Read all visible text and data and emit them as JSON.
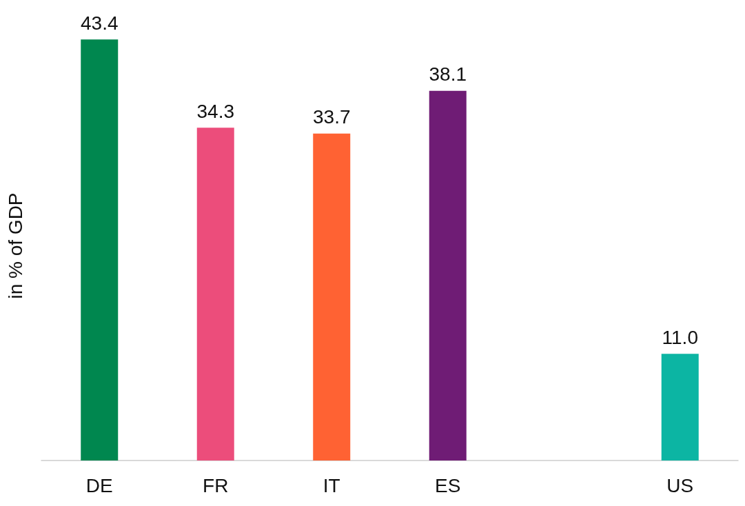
{
  "chart_data": {
    "type": "bar",
    "ylabel": "in % of GDP",
    "categories": [
      "DE",
      "FR",
      "IT",
      "ES",
      null,
      "US"
    ],
    "values": [
      43.4,
      34.3,
      33.7,
      38.1,
      null,
      11.0
    ],
    "colors": [
      "#00874f",
      "#ec4d7b",
      "#ff6233",
      "#6f1c75",
      "#000000",
      "#0cb5a3"
    ],
    "value_labels": [
      "43.4",
      "34.3",
      "33.7",
      "38.1",
      null,
      "11.0"
    ],
    "tick_labels": "x"
  }
}
